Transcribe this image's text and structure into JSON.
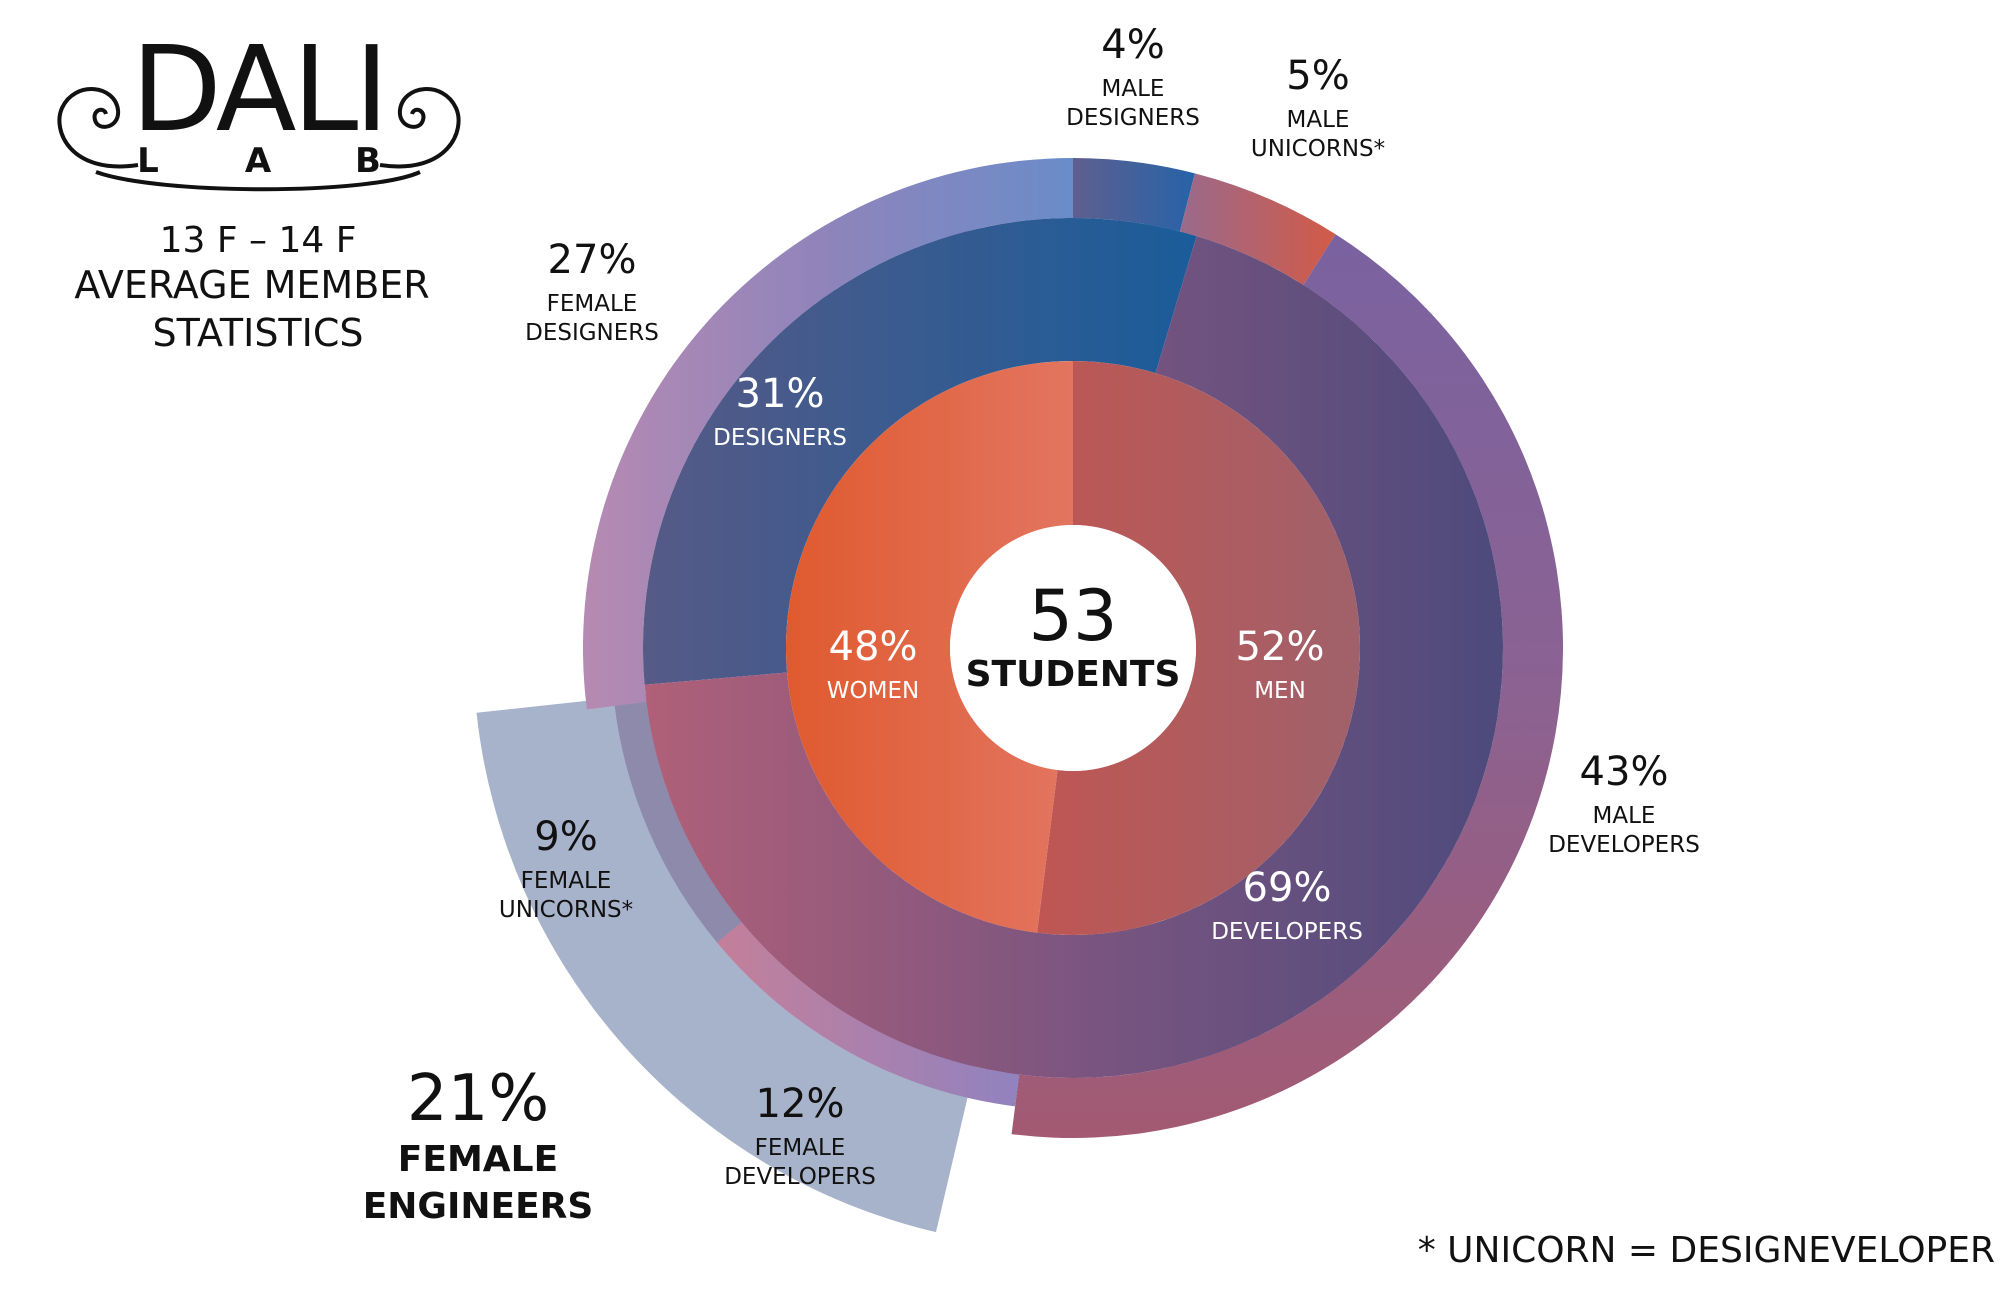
{
  "header": {
    "logo_word": "DALI",
    "logo_sub": [
      "L",
      "A",
      "B"
    ],
    "period": "13 F – 14 F",
    "title_line1": "AVERAGE MEMBER",
    "title_line2": "STATISTICS"
  },
  "center": {
    "count": "53",
    "unit": "STUDENTS"
  },
  "footnote": "* UNICORN = DESIGNEVELOPER",
  "colors": {
    "women": "#e0623c",
    "men": "#b85a58",
    "designers": "#3f5c8c",
    "developers": "#5e4a7e",
    "outer_designers": "#8b86c0",
    "outer_developers": "#8e6690",
    "female_engineers_panel": "#a7b3cb"
  },
  "chart_data": {
    "type": "sunburst",
    "total_students": 53,
    "rings": [
      {
        "name": "gender",
        "segments": [
          {
            "label": "WOMEN",
            "pct_label": "48%",
            "value": 48
          },
          {
            "label": "MEN",
            "pct_label": "52%",
            "value": 52
          }
        ]
      },
      {
        "name": "role",
        "segments": [
          {
            "label": "DESIGNERS",
            "pct_label": "31%",
            "value": 31
          },
          {
            "label": "DEVELOPERS",
            "pct_label": "69%",
            "value": 69
          }
        ]
      },
      {
        "name": "gender_role",
        "segments": [
          {
            "label_lines": [
              "MALE",
              "DESIGNERS"
            ],
            "pct_label": "4%",
            "value": 4
          },
          {
            "label_lines": [
              "MALE",
              "UNICORNS*"
            ],
            "pct_label": "5%",
            "value": 5
          },
          {
            "label_lines": [
              "MALE",
              "DEVELOPERS"
            ],
            "pct_label": "43%",
            "value": 43
          },
          {
            "label_lines": [
              "FEMALE",
              "DEVELOPERS"
            ],
            "pct_label": "12%",
            "value": 12
          },
          {
            "label_lines": [
              "FEMALE",
              "UNICORNS*"
            ],
            "pct_label": "9%",
            "value": 9
          },
          {
            "label_lines": [
              "FEMALE",
              "DESIGNERS"
            ],
            "pct_label": "27%",
            "value": 27
          }
        ]
      }
    ],
    "highlight": {
      "pct_label": "21%",
      "label_lines": [
        "FEMALE",
        "ENGINEERS"
      ],
      "value": 21
    }
  }
}
